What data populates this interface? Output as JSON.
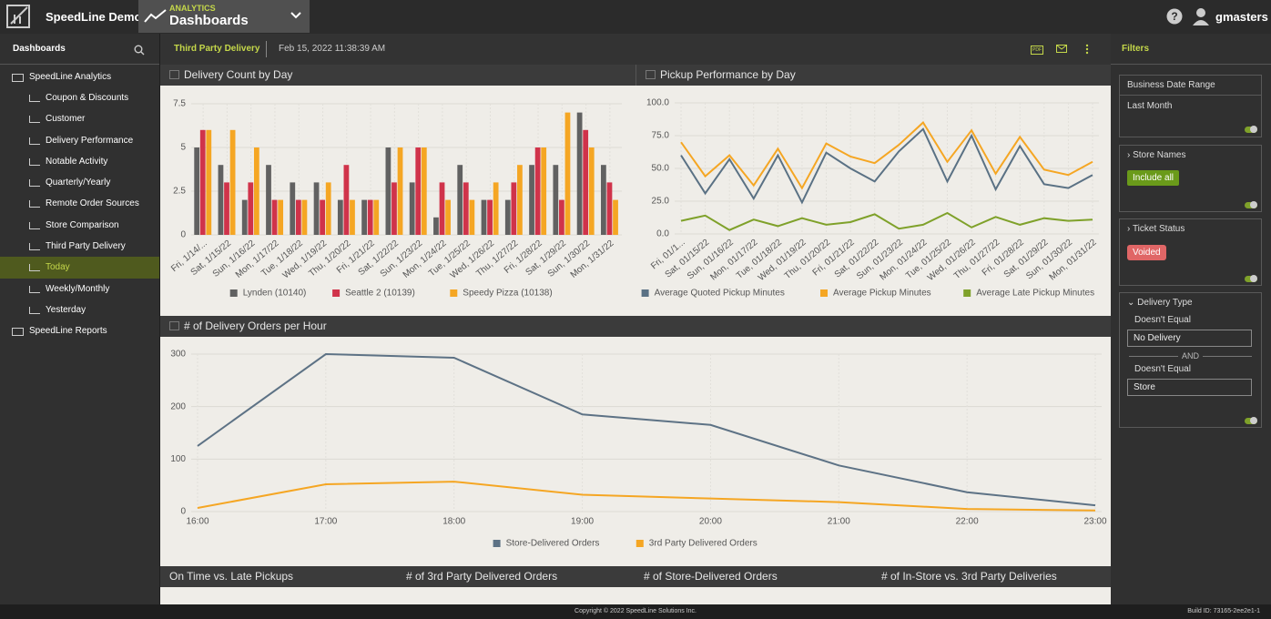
{
  "header": {
    "brand": "SpeedLine Demo",
    "module": "ANALYTICS",
    "app": "Dashboards",
    "user": "gmasters"
  },
  "sidebar": {
    "title": "Dashboards",
    "selected_index": 8,
    "groups": [
      {
        "label": "SpeedLine Analytics",
        "items": [
          "Coupon & Discounts",
          "Customer",
          "Delivery Performance",
          "Notable Activity",
          "Quarterly/Yearly",
          "Remote Order Sources",
          "Store Comparison",
          "Third Party Delivery",
          "Today",
          "Weekly/Monthly",
          "Yesterday"
        ]
      },
      {
        "label": "SpeedLine Reports",
        "items": []
      }
    ]
  },
  "toolbar": {
    "title": "Third Party Delivery",
    "timestamp": "Feb 15, 2022 11:38:39 AM",
    "pdf": "PDF"
  },
  "charts": [
    {
      "type": "bar",
      "title": "Delivery Count by Day",
      "categories": [
        "Fri, 1/14/...",
        "Sat, 1/15/22",
        "Sun, 1/16/22",
        "Mon, 1/17/22",
        "Tue, 1/18/22",
        "Wed, 1/19/22",
        "Thu, 1/20/22",
        "Fri, 1/21/22",
        "Sat, 1/22/22",
        "Sun, 1/23/22",
        "Mon, 1/24/22",
        "Tue, 1/25/22",
        "Wed, 1/26/22",
        "Thu, 1/27/22",
        "Fri, 1/28/22",
        "Sat, 1/29/22",
        "Sun, 1/30/22",
        "Mon, 1/31/22"
      ],
      "series": [
        {
          "name": "Lynden (10140)",
          "color": "#616161",
          "values": [
            5,
            4,
            2,
            4,
            3,
            3,
            2,
            2,
            5,
            3,
            1,
            4,
            2,
            2,
            4,
            4,
            7,
            4
          ]
        },
        {
          "name": "Seattle 2 (10139)",
          "color": "#d0334a",
          "values": [
            6,
            3,
            3,
            2,
            2,
            2,
            4,
            2,
            3,
            5,
            3,
            3,
            2,
            3,
            5,
            2,
            6,
            3
          ]
        },
        {
          "name": "Speedy Pizza (10138)",
          "color": "#f5a623",
          "values": [
            6,
            6,
            5,
            2,
            2,
            3,
            2,
            2,
            5,
            5,
            2,
            2,
            3,
            4,
            5,
            7,
            5,
            2
          ]
        }
      ],
      "ylim": [
        0,
        7.5
      ],
      "yticks": [
        0,
        2.5,
        5,
        7.5
      ],
      "grid": true
    },
    {
      "type": "line",
      "title": "Pickup Performance by Day",
      "categories": [
        "Fri, 01/1...",
        "Sat, 01/15/22",
        "Sun, 01/16/22",
        "Mon, 01/17/22",
        "Tue, 01/18/22",
        "Wed, 01/19/22",
        "Thu, 01/20/22",
        "Fri, 01/21/22",
        "Sat, 01/22/22",
        "Sun, 01/23/22",
        "Mon, 01/24/22",
        "Tue, 01/25/22",
        "Wed, 01/26/22",
        "Thu, 01/27/22",
        "Fri, 01/28/22",
        "Sat, 01/29/22",
        "Sun, 01/30/22",
        "Mon, 01/31/22"
      ],
      "series": [
        {
          "name": "Average Quoted Pickup Minutes",
          "color": "#5a7184",
          "values": [
            60,
            31,
            57,
            27,
            60,
            24,
            62,
            50,
            40,
            63,
            80,
            40,
            75,
            34,
            67,
            38,
            35,
            45
          ]
        },
        {
          "name": "Average Pickup Minutes",
          "color": "#f5a623",
          "values": [
            70,
            44,
            60,
            37,
            65,
            35,
            69,
            59,
            54,
            68,
            85,
            55,
            79,
            46,
            74,
            49,
            45,
            55
          ]
        },
        {
          "name": "Average Late Pickup Minutes",
          "color": "#7fa12a",
          "values": [
            10,
            14,
            3,
            11,
            6,
            12,
            7,
            9,
            15,
            4,
            7,
            16,
            5,
            13,
            7,
            12,
            10,
            11
          ]
        }
      ],
      "ylim": [
        0,
        100
      ],
      "yticks": [
        {
          "value": 0,
          "label": "0.0"
        },
        {
          "value": 25,
          "label": "25.0"
        },
        {
          "value": 50,
          "label": "50.0"
        },
        {
          "value": 75,
          "label": "75.0"
        },
        {
          "value": 100,
          "label": "100.0"
        }
      ],
      "grid": true
    },
    {
      "type": "line",
      "title": "# of Delivery Orders per Hour",
      "categories": [
        "16:00",
        "17:00",
        "18:00",
        "19:00",
        "20:00",
        "21:00",
        "22:00",
        "23:00"
      ],
      "series": [
        {
          "name": "Store-Delivered Orders",
          "color": "#5d7285",
          "values": [
            125,
            300,
            293,
            185,
            165,
            88,
            37,
            12
          ]
        },
        {
          "name": "3rd Party Delivered Orders",
          "color": "#f5a623",
          "values": [
            7,
            52,
            57,
            32,
            25,
            18,
            5,
            2
          ]
        }
      ],
      "ylim": [
        0,
        300
      ],
      "yticks": [
        0,
        100,
        200,
        300
      ],
      "grid": true
    }
  ],
  "bottom_panels": [
    "On Time vs. Late Pickups",
    "# of 3rd Party Delivered Orders",
    "# of Store-Delivered Orders",
    "# of In-Store vs. 3rd Party Deliveries"
  ],
  "filters": {
    "title": "Filters",
    "sections": [
      {
        "title": "Business Date Range",
        "value": "Last Month"
      },
      {
        "title": "Store Names",
        "button": "Include all"
      },
      {
        "title": "Ticket Status",
        "tag": "Voided"
      },
      {
        "title": "Delivery Type",
        "joiner": "AND",
        "conditions": [
          {
            "operator": "Doesn't Equal",
            "value": "No Delivery"
          },
          {
            "operator": "Doesn't Equal",
            "value": "Store"
          }
        ]
      }
    ]
  },
  "footer": {
    "copyright": "Copyright © 2022 SpeedLine Solutions Inc.",
    "build": "Build ID: 73165-2ee2e1-1"
  }
}
